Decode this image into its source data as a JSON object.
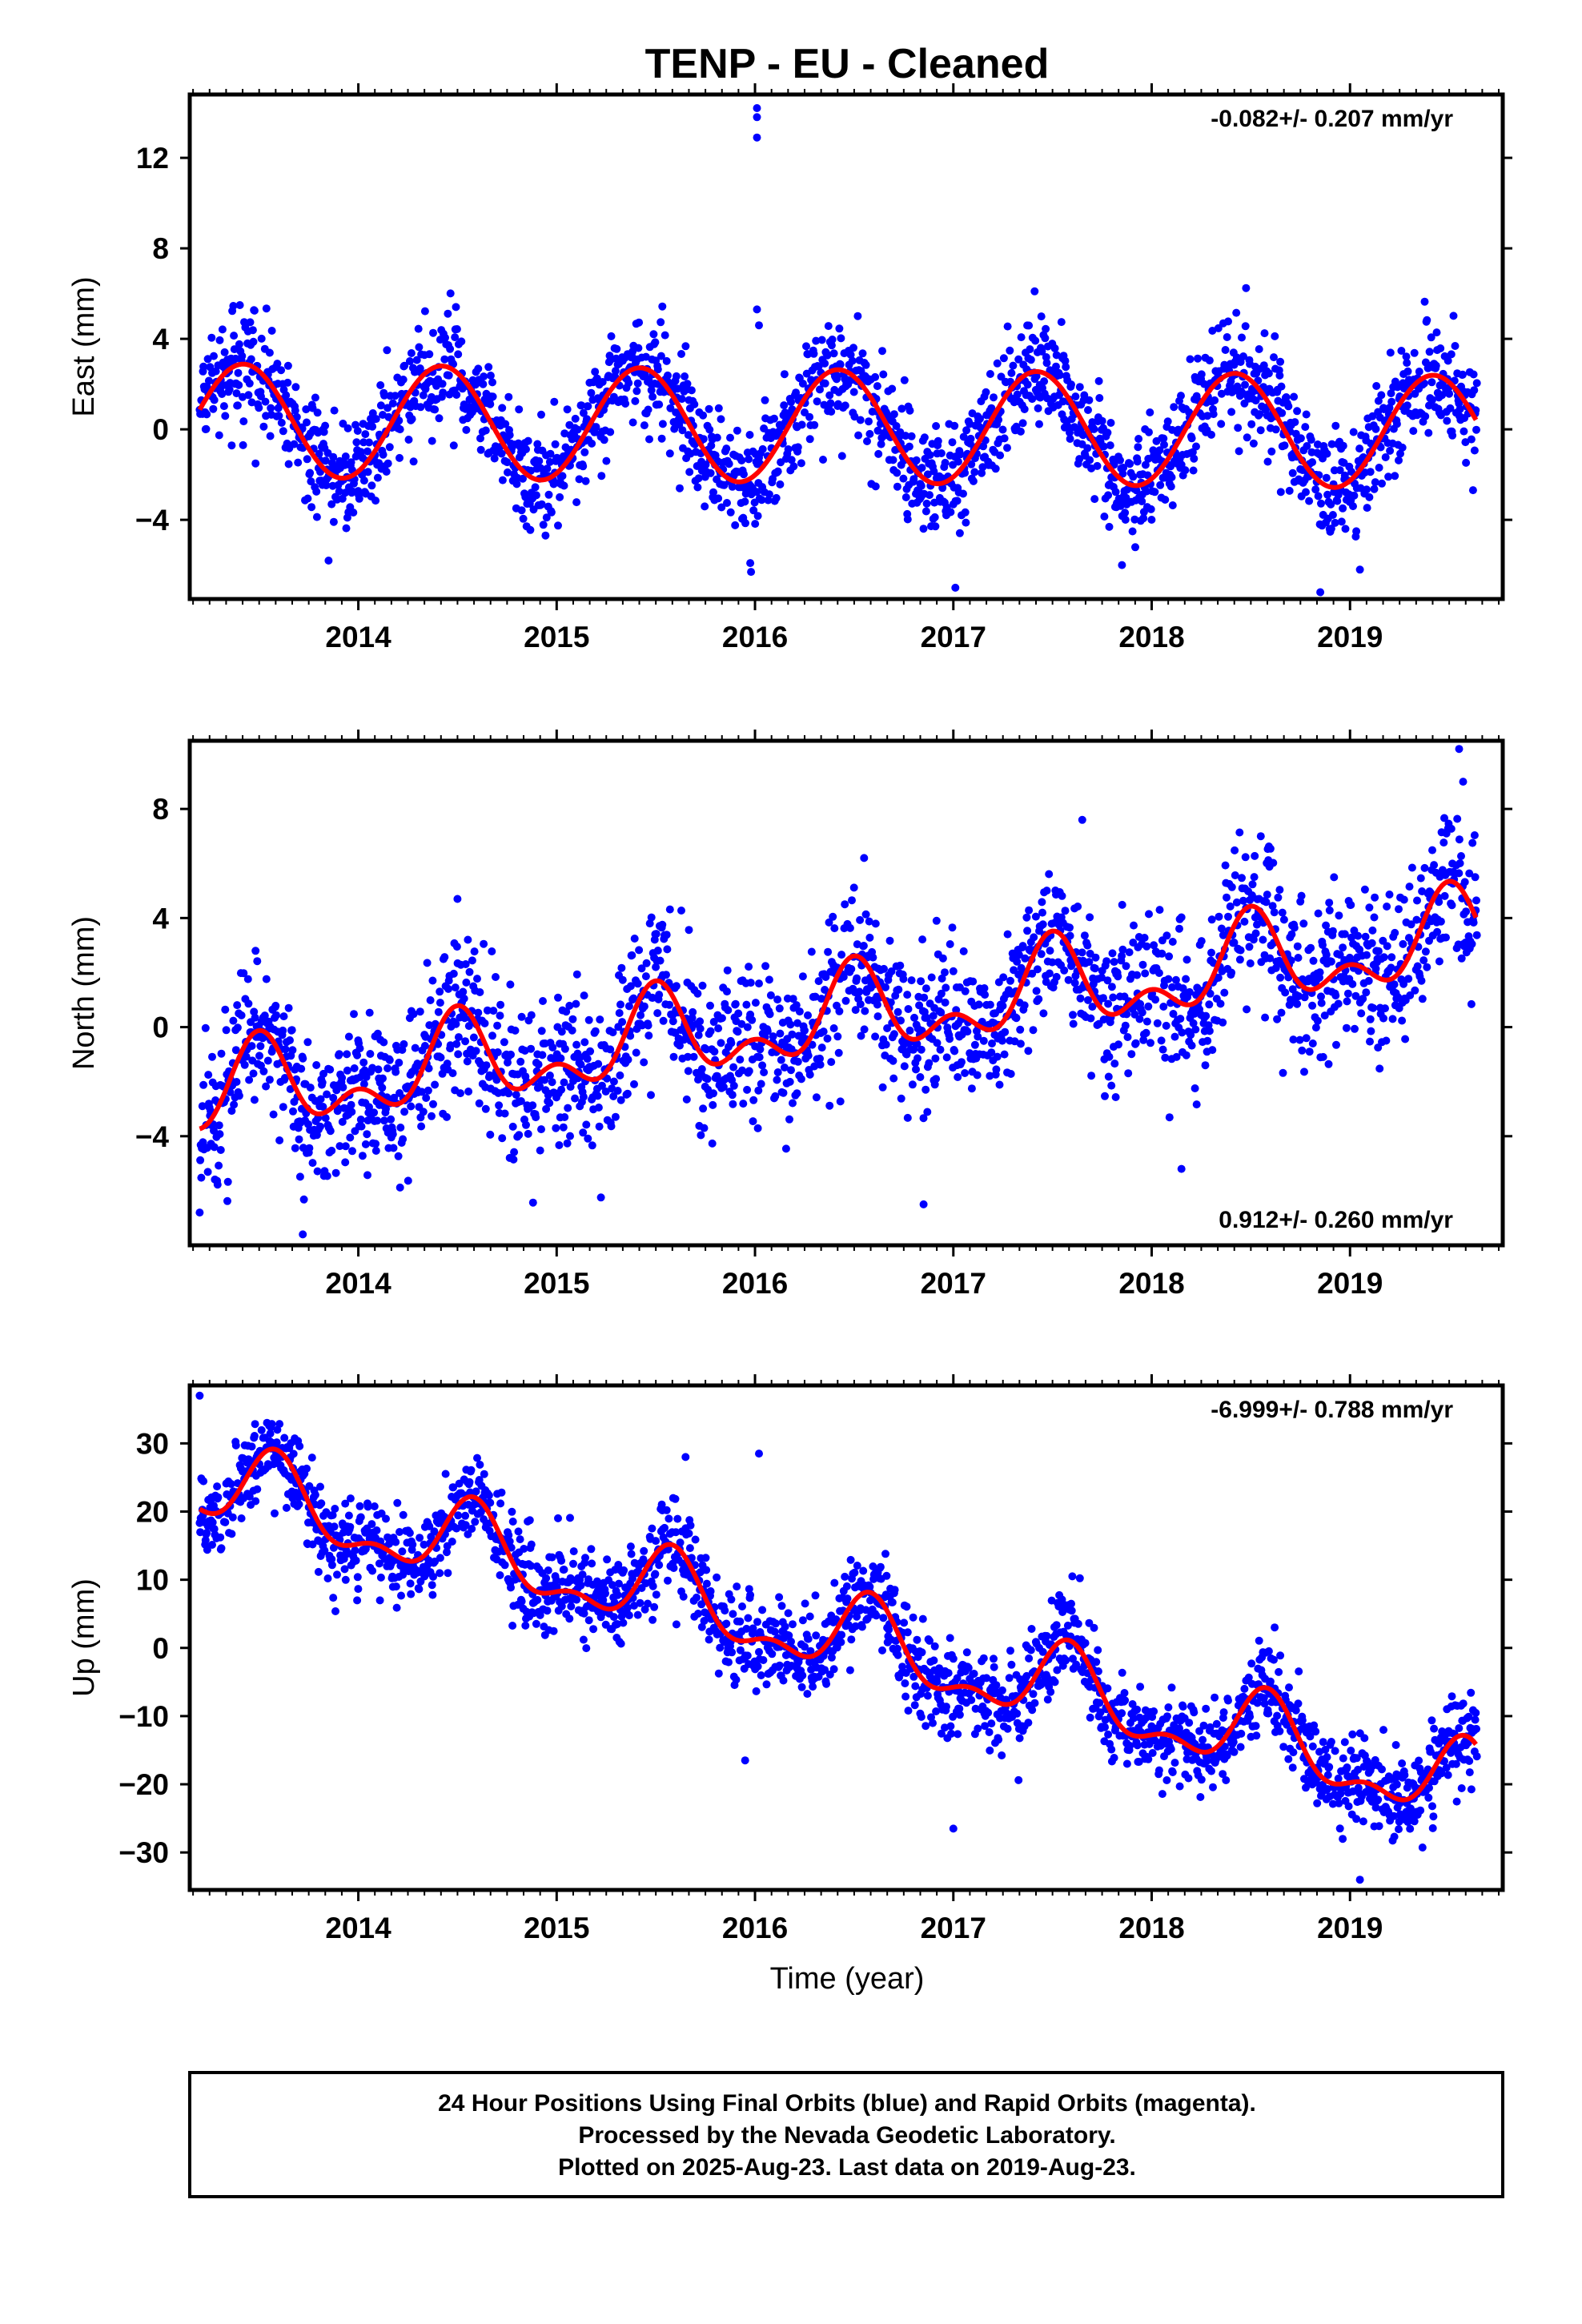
{
  "title": "TENP  - EU - Cleaned",
  "x_axis_label": "Time (year)",
  "footer": {
    "line1": "24 Hour Positions Using Final Orbits (blue) and Rapid Orbits (magenta).",
    "line2": "Processed by the Nevada Geodetic Laboratory.",
    "line3": "Plotted on 2025-Aug-23. Last data on 2019-Aug-23."
  },
  "colors": {
    "points": "#0000ff",
    "fit": "#ff0000",
    "frame": "#000000"
  },
  "chart_data": [
    {
      "type": "scatter",
      "component": "east",
      "ylabel": "East (mm)",
      "rate_label": "-0.082+/- 0.207 mm/yr",
      "rate_position": "top-right",
      "xlim": [
        2013.15,
        2019.77
      ],
      "ylim": [
        -7.5,
        14.8
      ],
      "xticks": [
        2014,
        2015,
        2016,
        2017,
        2018,
        2019
      ],
      "yticks": [
        -4,
        0,
        4,
        8,
        12
      ],
      "grid": false,
      "model": {
        "offset": 0.4,
        "rate": -0.082,
        "ref_year": 2013.2,
        "annual_amp": 2.5,
        "phase_peak": 0.42,
        "semi_amp": 0.0,
        "semi_peak": 0.0,
        "noise_sd": 1.2
      },
      "outliers": [
        [
          2016.01,
          14.2
        ],
        [
          2016.01,
          13.8
        ],
        [
          2016.01,
          12.9
        ],
        [
          2016.01,
          5.3
        ],
        [
          2016.02,
          4.6
        ],
        [
          2017.01,
          -7.0
        ],
        [
          2018.85,
          -7.2
        ],
        [
          2015.98,
          -6.3
        ],
        [
          2013.85,
          -5.8
        ],
        [
          2017.85,
          -6.0
        ],
        [
          2019.05,
          -6.2
        ],
        [
          2017.41,
          6.1
        ]
      ]
    },
    {
      "type": "scatter",
      "component": "north",
      "ylabel": "North (mm)",
      "rate_label": "0.912+/- 0.260 mm/yr",
      "rate_position": "bottom-right",
      "xlim": [
        2013.15,
        2019.77
      ],
      "ylim": [
        -8.0,
        10.5
      ],
      "xticks": [
        2014,
        2015,
        2016,
        2017,
        2018,
        2019
      ],
      "yticks": [
        -4,
        0,
        4,
        8
      ],
      "grid": false,
      "model": {
        "offset": -2.6,
        "rate": 0.912,
        "ref_year": 2013.2,
        "annual_amp": 1.3,
        "phase_peak": 0.5,
        "semi_amp": 0.9,
        "semi_peak": 0.0,
        "noise_sd": 1.4
      },
      "outliers": [
        [
          2013.2,
          -6.8
        ],
        [
          2013.72,
          -7.6
        ],
        [
          2016.85,
          -6.5
        ],
        [
          2018.15,
          -5.2
        ],
        [
          2019.55,
          10.2
        ],
        [
          2019.57,
          9.0
        ],
        [
          2017.65,
          7.6
        ],
        [
          2016.55,
          6.2
        ],
        [
          2014.5,
          4.7
        ],
        [
          2018.55,
          7.0
        ]
      ]
    },
    {
      "type": "scatter",
      "component": "up",
      "ylabel": "Up (mm)",
      "rate_label": "-6.999+/- 0.788 mm/yr",
      "rate_position": "top-right",
      "xlim": [
        2013.15,
        2019.77
      ],
      "ylim": [
        -35.5,
        38.5
      ],
      "xticks": [
        2014,
        2015,
        2016,
        2017,
        2018,
        2019
      ],
      "yticks": [
        -30,
        -20,
        -10,
        0,
        10,
        20,
        30
      ],
      "grid": false,
      "model": {
        "offset": 24.0,
        "rate": -6.999,
        "ref_year": 2013.2,
        "annual_amp": 5.2,
        "phase_peak": 0.58,
        "semi_amp": 2.6,
        "semi_peak": 0.08,
        "noise_sd": 3.3
      },
      "outliers": [
        [
          2016.02,
          28.5
        ],
        [
          2015.65,
          28.0
        ],
        [
          2013.2,
          37.0
        ],
        [
          2015.95,
          -16.5
        ],
        [
          2017.0,
          -26.5
        ],
        [
          2019.05,
          -34.0
        ],
        [
          2017.6,
          10.5
        ],
        [
          2018.62,
          3.0
        ]
      ]
    }
  ]
}
